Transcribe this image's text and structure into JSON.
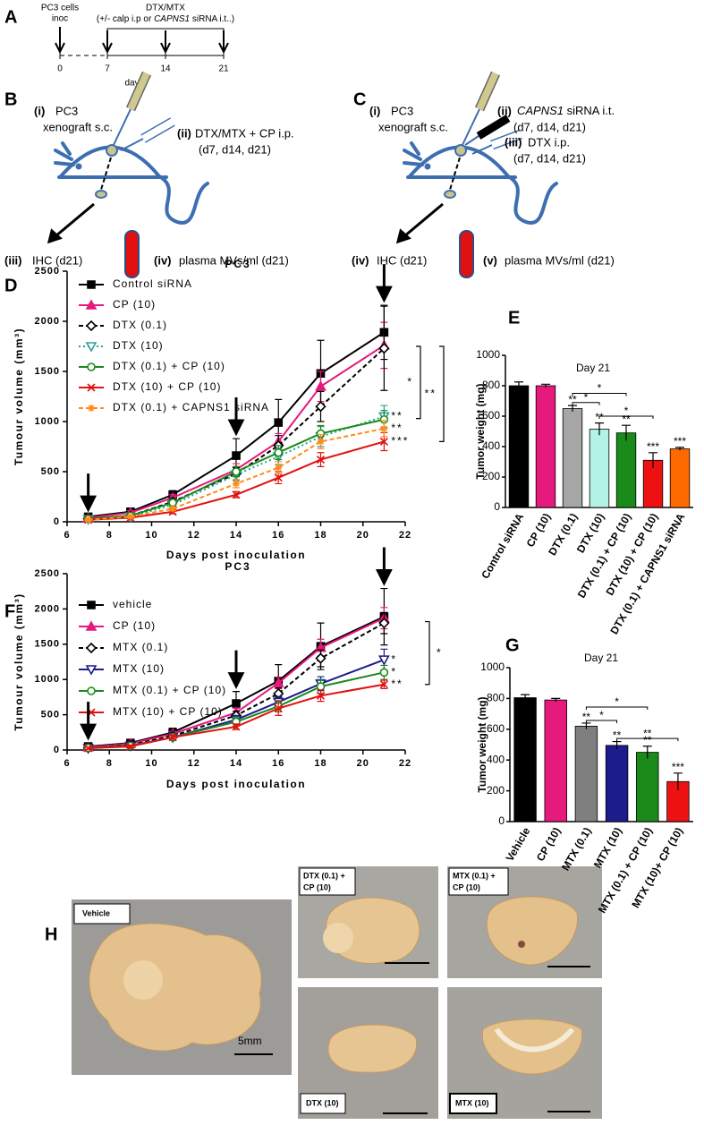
{
  "panel_labels": [
    "A",
    "B",
    "C",
    "D",
    "E",
    "F",
    "G",
    "H"
  ],
  "timeline": {
    "inoc": [
      "PC3 cells",
      "inoc"
    ],
    "treatment": "DTX/MTX",
    "treatment_note": [
      "(+/- calp i.p or ",
      "CAPNS1",
      " siRNA i.t..)"
    ],
    "ticks": [
      "0",
      "7",
      "14",
      "21"
    ],
    "axis_label": "days"
  },
  "diagram_b": {
    "i": "(i)",
    "i_text": [
      "PC3",
      "xenograft s.c."
    ],
    "ii": "(ii)",
    "ii_text": [
      "DTX/MTX + CP i.p.",
      "(d7, d14, d21)"
    ],
    "iii": "(iii)",
    "iii_text": "IHC (d21)",
    "iv": "(iv)",
    "iv_text": "plasma MVs/ml (d21)"
  },
  "diagram_c": {
    "i": "(i)",
    "i_text": [
      "PC3",
      "xenograft s.c."
    ],
    "ii": "(ii)",
    "ii_text": [
      "CAPNS1",
      " siRNA i.t.",
      "(d7, d14, d21)"
    ],
    "iii": "(iii)",
    "iii_text": [
      "DTX i.p.",
      "(d7, d14, d21)"
    ],
    "iv": "(iv)",
    "iv_text": "IHC (d21)",
    "v": "(v)",
    "v_text": "plasma MVs/ml (d21)"
  },
  "chart_data": [
    {
      "type": "line",
      "title": "PC3",
      "x_label": "Days post inoculation",
      "y_label": "Tumour volume (mm³)",
      "x": [
        7,
        9,
        11,
        14,
        16,
        18,
        21
      ],
      "xlim": [
        6,
        22
      ],
      "xticks": [
        6,
        8,
        10,
        12,
        14,
        16,
        18,
        20,
        22
      ],
      "ylim": [
        0,
        2500
      ],
      "yticks": [
        0,
        500,
        1000,
        1500,
        2000,
        2500
      ],
      "arrow_days": [
        7,
        14,
        21
      ],
      "series": [
        {
          "name": "Control siRNA",
          "color": "#000000",
          "marker": "square",
          "marker_filled": true,
          "line_style": "solid",
          "values": [
            50,
            100,
            270,
            660,
            990,
            1480,
            1890
          ],
          "errors": [
            20,
            20,
            40,
            170,
            230,
            330,
            270
          ]
        },
        {
          "name": "CP (10)",
          "color": "#e6197d",
          "marker": "triangle",
          "marker_filled": true,
          "line_style": "solid",
          "values": [
            40,
            90,
            240,
            520,
            800,
            1350,
            1760
          ],
          "errors": [
            15,
            20,
            30,
            60,
            80,
            150,
            230
          ]
        },
        {
          "name": "DTX (0.1)",
          "color": "#000000",
          "marker": "diamond",
          "marker_filled": false,
          "line_style": "dashed",
          "values": [
            30,
            60,
            200,
            480,
            760,
            1150,
            1730
          ],
          "errors": [
            10,
            15,
            30,
            60,
            100,
            150,
            420
          ]
        },
        {
          "name": "DTX (10)",
          "color": "#2aa198",
          "marker": "triangle-down",
          "marker_filled": false,
          "line_style": "dotted",
          "values": [
            25,
            50,
            170,
            470,
            650,
            850,
            1050
          ],
          "errors": [
            10,
            15,
            30,
            60,
            80,
            100,
            110
          ],
          "significance": "**"
        },
        {
          "name": "DTX (0.1) + CP (10)",
          "color": "#1a8a1a",
          "marker": "circle",
          "marker_filled": false,
          "line_style": "solid",
          "values": [
            30,
            60,
            190,
            500,
            690,
            880,
            1020
          ],
          "errors": [
            10,
            15,
            30,
            50,
            70,
            80,
            90
          ]
        },
        {
          "name": "DTX (10) + CP (10)",
          "color": "#e01010",
          "marker": "x",
          "marker_filled": false,
          "line_style": "solid",
          "values": [
            20,
            40,
            100,
            270,
            440,
            620,
            800
          ],
          "errors": [
            10,
            10,
            20,
            30,
            60,
            70,
            90
          ],
          "significance": "***"
        },
        {
          "name": "DTX (0.1) + CAPNS1 siRNA",
          "color": "#ff8c1a",
          "marker": "star",
          "marker_filled": false,
          "line_style": "dashed",
          "values": [
            20,
            50,
            130,
            380,
            540,
            800,
            930
          ],
          "errors": [
            10,
            10,
            20,
            40,
            60,
            70,
            80
          ],
          "significance": "**"
        }
      ],
      "brackets": [
        "*",
        "**"
      ]
    },
    {
      "type": "bar",
      "title": "Day 21",
      "y_label": "Tumor weight (mg)",
      "categories": [
        "Control siRNA",
        "CP (10)",
        "DTX (0.1)",
        "DTX (10)",
        "DTX (0.1) + CP (10)",
        "DTX (10) + CP (10)",
        "DTX (0.1) + CAPNS1 siRNA"
      ],
      "values": [
        800,
        800,
        650,
        515,
        490,
        310,
        385
      ],
      "errors": [
        25,
        10,
        20,
        40,
        50,
        50,
        10
      ],
      "colors": [
        "#000000",
        "#e6197d",
        "#a6a6a6",
        "#b3f2e6",
        "#1a8a1a",
        "#ee1111",
        "#ff6a00"
      ],
      "significance": [
        null,
        null,
        "**",
        "**",
        "**",
        "***",
        "***"
      ],
      "brackets": [
        "*",
        "*",
        "*"
      ],
      "ylim": [
        0,
        1000
      ],
      "yticks": [
        0,
        200,
        400,
        600,
        800,
        1000
      ]
    },
    {
      "type": "line",
      "title": "PC3",
      "x_label": "Days post inoculation",
      "y_label": "Tumour volume (mm³)",
      "x": [
        7,
        9,
        11,
        14,
        16,
        18,
        21
      ],
      "xlim": [
        6,
        22
      ],
      "xticks": [
        6,
        8,
        10,
        12,
        14,
        16,
        18,
        20,
        22
      ],
      "ylim": [
        0,
        2500
      ],
      "yticks": [
        0,
        500,
        1000,
        1500,
        2000,
        2500
      ],
      "arrow_days": [
        7,
        14,
        21
      ],
      "series": [
        {
          "name": "vehicle",
          "color": "#000000",
          "marker": "square",
          "marker_filled": true,
          "line_style": "solid",
          "values": [
            50,
            100,
            250,
            660,
            980,
            1470,
            1890
          ],
          "errors": [
            50,
            30,
            60,
            170,
            230,
            330,
            400
          ]
        },
        {
          "name": "CP (10)",
          "color": "#e6197d",
          "marker": "triangle",
          "marker_filled": true,
          "line_style": "solid",
          "values": [
            40,
            90,
            230,
            530,
            950,
            1450,
            1870
          ],
          "errors": [
            20,
            20,
            30,
            60,
            80,
            120,
            150
          ]
        },
        {
          "name": "MTX (0.1)",
          "color": "#000000",
          "marker": "diamond",
          "marker_filled": false,
          "line_style": "dashed",
          "values": [
            30,
            70,
            200,
            490,
            800,
            1300,
            1800
          ],
          "errors": [
            15,
            20,
            30,
            60,
            80,
            120,
            150
          ]
        },
        {
          "name": "MTX (10)",
          "color": "#1c1c8c",
          "marker": "triangle-down",
          "marker_filled": false,
          "line_style": "solid",
          "values": [
            25,
            60,
            180,
            430,
            680,
            940,
            1280
          ],
          "errors": [
            15,
            20,
            30,
            60,
            80,
            100,
            150
          ],
          "significance": "*"
        },
        {
          "name": "MTX (0.1) + CP (10)",
          "color": "#1a8a1a",
          "marker": "circle",
          "marker_filled": false,
          "line_style": "solid",
          "values": [
            30,
            60,
            180,
            400,
            620,
            900,
            1100
          ],
          "errors": [
            15,
            20,
            30,
            60,
            80,
            100,
            100
          ],
          "significance": "*"
        },
        {
          "name": "MTX (10) + CP (10)",
          "color": "#e01010",
          "marker": "x",
          "marker_filled": false,
          "line_style": "solid",
          "values": [
            25,
            50,
            180,
            330,
            590,
            770,
            930
          ],
          "errors": [
            15,
            20,
            30,
            40,
            100,
            80,
            60
          ],
          "significance": "**"
        }
      ],
      "brackets": [
        "*"
      ]
    },
    {
      "type": "bar",
      "title": "Day 21",
      "y_label": "Tumor weight (mg)",
      "categories": [
        "Vehicle",
        "CP (10)",
        "MTX (0.1)",
        "MTX (10)",
        "MTX (0.1) + CP (10)",
        "MTX (10)+ CP (10)"
      ],
      "values": [
        805,
        790,
        620,
        495,
        450,
        260
      ],
      "errors": [
        20,
        10,
        20,
        25,
        40,
        55
      ],
      "colors": [
        "#000000",
        "#e6197d",
        "#7f7f7f",
        "#1c1c8c",
        "#1a8a1a",
        "#ee1111"
      ],
      "significance": [
        null,
        null,
        "**",
        "**",
        "**",
        "***"
      ],
      "brackets": [
        "*",
        "*",
        "**"
      ],
      "ylim": [
        0,
        1000
      ],
      "yticks": [
        0,
        200,
        400,
        600,
        800,
        1000
      ]
    }
  ],
  "photos": {
    "vehicle": "Vehicle",
    "scale": "5mm",
    "dtx_cp": [
      "DTX (0.1) +",
      "CP (10)"
    ],
    "mtx_cp": [
      "MTX (0.1) +",
      "CP (10)"
    ],
    "dtx": "DTX (10)",
    "mtx": "MTX (10)"
  }
}
